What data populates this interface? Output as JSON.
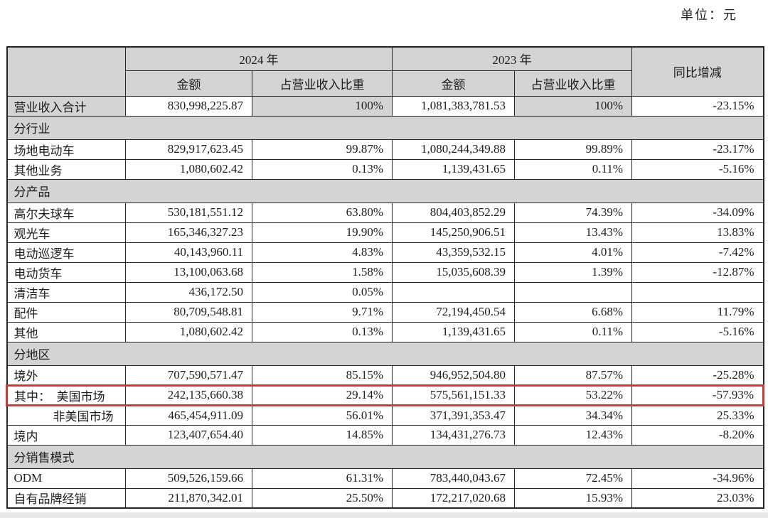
{
  "meta": {
    "unit_label": "单位：元"
  },
  "colors": {
    "header_bg": "#d4d4d4",
    "border": "#262626",
    "highlight_border": "#c43c3c",
    "bottom_strip": "#e9e9e9"
  },
  "table": {
    "header": {
      "year_2024": "2024 年",
      "year_2023": "2023 年",
      "amount_2024": "金额",
      "share_2024": "占营业收入比重",
      "amount_2023": "金额",
      "share_2023": "占营业收入比重",
      "yoy": "同比增减"
    },
    "rows": [
      {
        "type": "data",
        "total": true,
        "label": "营业收入合计",
        "a24": "830,998,225.87",
        "s24": "100%",
        "a23": "1,081,383,781.53",
        "s23": "100%",
        "yoy": "-23.15%"
      },
      {
        "type": "section",
        "label": "分行业"
      },
      {
        "type": "data",
        "label": "场地电动车",
        "a24": "829,917,623.45",
        "s24": "99.87%",
        "a23": "1,080,244,349.88",
        "s23": "99.89%",
        "yoy": "-23.17%"
      },
      {
        "type": "data",
        "label": "其他业务",
        "a24": "1,080,602.42",
        "s24": "0.13%",
        "a23": "1,139,431.65",
        "s23": "0.11%",
        "yoy": "-5.16%"
      },
      {
        "type": "section",
        "label": "分产品"
      },
      {
        "type": "data",
        "label": "高尔夫球车",
        "a24": "530,181,551.12",
        "s24": "63.80%",
        "a23": "804,403,852.29",
        "s23": "74.39%",
        "yoy": "-34.09%"
      },
      {
        "type": "data",
        "label": "观光车",
        "a24": "165,346,327.23",
        "s24": "19.90%",
        "a23": "145,250,906.51",
        "s23": "13.43%",
        "yoy": "13.83%"
      },
      {
        "type": "data",
        "label": "电动巡逻车",
        "a24": "40,143,960.11",
        "s24": "4.83%",
        "a23": "43,359,532.15",
        "s23": "4.01%",
        "yoy": "-7.42%"
      },
      {
        "type": "data",
        "label": "电动货车",
        "a24": "13,100,063.68",
        "s24": "1.58%",
        "a23": "15,035,608.39",
        "s23": "1.39%",
        "yoy": "-12.87%"
      },
      {
        "type": "data",
        "label": "清洁车",
        "a24": "436,172.50",
        "s24": "0.05%",
        "a23": "",
        "s23": "",
        "yoy": ""
      },
      {
        "type": "data",
        "label": "配件",
        "a24": "80,709,548.81",
        "s24": "9.71%",
        "a23": "72,194,450.54",
        "s23": "6.68%",
        "yoy": "11.79%"
      },
      {
        "type": "data",
        "label": "其他",
        "a24": "1,080,602.42",
        "s24": "0.13%",
        "a23": "1,139,431.65",
        "s23": "0.11%",
        "yoy": "-5.16%"
      },
      {
        "type": "section",
        "label": "分地区"
      },
      {
        "type": "data",
        "label": "境外",
        "a24": "707,590,571.47",
        "s24": "85.15%",
        "a23": "946,952,504.80",
        "s23": "87.57%",
        "yoy": "-25.28%"
      },
      {
        "type": "data",
        "highlighted": true,
        "label": "其中：　美国市场",
        "a24": "242,135,660.38",
        "s24": "29.14%",
        "a23": "575,561,151.33",
        "s23": "53.22%",
        "yoy": "-57.93%"
      },
      {
        "type": "data",
        "indent": true,
        "label": "非美国市场",
        "a24": "465,454,911.09",
        "s24": "56.01%",
        "a23": "371,391,353.47",
        "s23": "34.34%",
        "yoy": "25.33%"
      },
      {
        "type": "data",
        "label": "境内",
        "a24": "123,407,654.40",
        "s24": "14.85%",
        "a23": "134,431,276.73",
        "s23": "12.43%",
        "yoy": "-8.20%"
      },
      {
        "type": "section",
        "label": "分销售模式"
      },
      {
        "type": "data",
        "label": "ODM",
        "a24": "509,526,159.66",
        "s24": "61.31%",
        "a23": "783,440,043.67",
        "s23": "72.45%",
        "yoy": "-34.96%"
      },
      {
        "type": "data",
        "label": "自有品牌经销",
        "a24": "211,870,342.01",
        "s24": "25.50%",
        "a23": "172,217,020.68",
        "s23": "15.93%",
        "yoy": "23.03%"
      }
    ]
  }
}
